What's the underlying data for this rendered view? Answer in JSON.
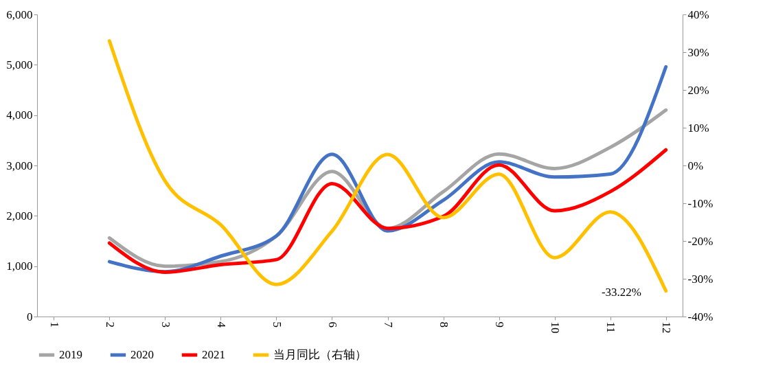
{
  "chart_data": {
    "type": "line",
    "categories": [
      "1",
      "2",
      "3",
      "4",
      "5",
      "6",
      "7",
      "8",
      "9",
      "10",
      "11",
      "12"
    ],
    "series": [
      {
        "name": "2019",
        "color": "#a5a5a5",
        "values": [
          null,
          1560,
          1000,
          1090,
          1600,
          2880,
          1750,
          2480,
          3230,
          2940,
          3360,
          4100
        ]
      },
      {
        "name": "2020",
        "color": "#4472c4",
        "values": [
          null,
          1090,
          890,
          1200,
          1600,
          3220,
          1700,
          2310,
          3070,
          2770,
          2830,
          4960
        ]
      },
      {
        "name": "2021",
        "color": "#ff0000",
        "values": [
          null,
          1460,
          880,
          1030,
          1130,
          2640,
          1750,
          1990,
          3010,
          2100,
          2480,
          3310
        ]
      },
      {
        "name": "当月同比（右轴）",
        "color": "#ffc000",
        "axis": "y2",
        "values": [
          null,
          33,
          -4.1,
          -15.7,
          -31.5,
          -17.4,
          2.9,
          -13.8,
          -2.3,
          -24.4,
          -12.3,
          -33.22
        ]
      }
    ],
    "ylim": [
      0,
      6000
    ],
    "yticks": [
      0,
      {
        "value": 1000,
        "label": "1,000"
      },
      {
        "value": 2000,
        "label": "2,000"
      },
      {
        "value": 3000,
        "label": "3,000"
      },
      {
        "value": 4000,
        "label": "4,000"
      },
      {
        "value": 5000,
        "label": "5,000"
      },
      {
        "value": 6000,
        "label": "6,000"
      }
    ],
    "y2lim": [
      -40,
      40
    ],
    "y2ticks": [
      {
        "value": -40,
        "label": "-40%"
      },
      {
        "value": -30,
        "label": "-30%"
      },
      {
        "value": -20,
        "label": "-20%"
      },
      {
        "value": -10,
        "label": "-10%"
      },
      {
        "value": 0,
        "label": "0%"
      },
      {
        "value": 10,
        "label": "10%"
      },
      {
        "value": 20,
        "label": "20%"
      },
      {
        "value": 30,
        "label": "30%"
      },
      {
        "value": 40,
        "label": "40%"
      }
    ],
    "annotations": [
      "-33.22%"
    ],
    "legend": "bottom",
    "grid": false
  }
}
